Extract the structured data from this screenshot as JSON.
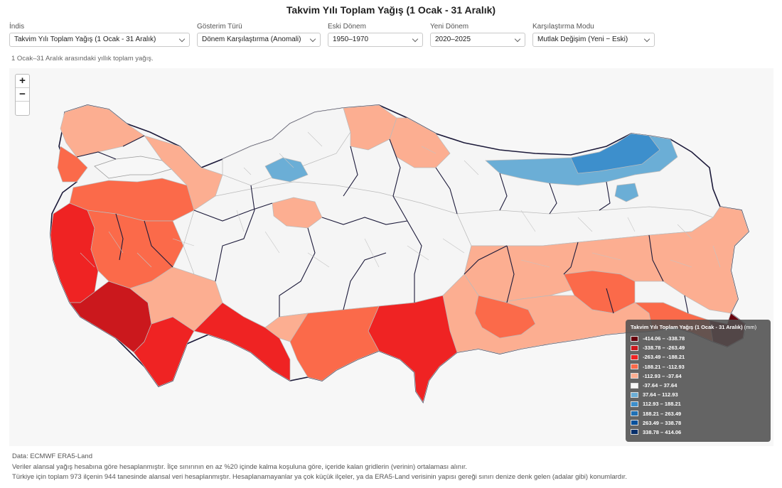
{
  "title": "Takvim Yılı Toplam Yağış (1 Ocak - 31 Aralık)",
  "controls": [
    {
      "label": "İndis",
      "value": "Takvim Yılı Toplam Yağış (1 Ocak - 31 Aralık)"
    },
    {
      "label": "Gösterim Türü",
      "value": "Dönem Karşılaştırma (Anomali)"
    },
    {
      "label": "Eski Dönem",
      "value": "1950–1970"
    },
    {
      "label": "Yeni Dönem",
      "value": "2020–2025"
    },
    {
      "label": "Karşılaştırma Modu",
      "value": "Mutlak Değişim (Yeni − Eski)"
    }
  ],
  "description": "1 Ocak–31 Aralık arasındaki yıllık toplam yağış.",
  "zoom": {
    "in": "+",
    "out": "−"
  },
  "legend": {
    "title": "Takvim Yılı Toplam Yağış (1 Ocak - 31 Aralık)",
    "unit": "(mm)",
    "items": [
      {
        "label": "-414.06 – -338.78",
        "color": "#67000d"
      },
      {
        "label": "-338.78 – -263.49",
        "color": "#cb181d"
      },
      {
        "label": "-263.49 – -188.21",
        "color": "#ef2323"
      },
      {
        "label": "-188.21 – -112.93",
        "color": "#fb6a4a"
      },
      {
        "label": "-112.93 – -37.64",
        "color": "#fcae91"
      },
      {
        "label": "-37.64 – 37.64",
        "color": "#f7f7f7"
      },
      {
        "label": "37.64 – 112.93",
        "color": "#6baed6"
      },
      {
        "label": "112.93 – 188.21",
        "color": "#3d8fcc"
      },
      {
        "label": "188.21 – 263.49",
        "color": "#2171b5"
      },
      {
        "label": "263.49 – 338.78",
        "color": "#08519c"
      },
      {
        "label": "338.78 – 414.06",
        "color": "#08306b"
      }
    ]
  },
  "footer": {
    "source": "Data: ECMWF ERA5-Land",
    "note1": "Veriler alansal yağış hesabına göre hesaplanmıştır. İlçe sınırının en az %20 içinde kalma koşuluna göre, içeride kalan gridlerin (verinin) ortalaması alınır.",
    "note2": "Türkiye için toplam 973 ilçenin 944 tanesinde alansal veri hesaplanmıştır. Hesaplanamayanlar ya çok küçük ilçeler, ya da ERA5-Land verisinin yapısı gereği sınırı denize denk gelen (adalar gibi) konumlardır."
  }
}
